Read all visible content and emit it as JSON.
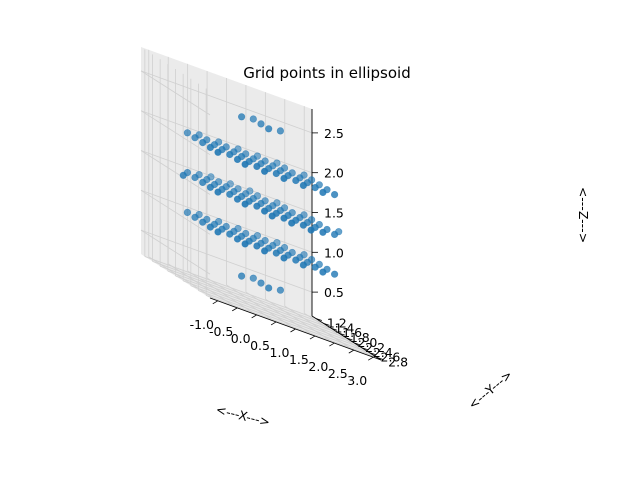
{
  "chart_data": {
    "type": "scatter3d",
    "title": "Grid points in ellipsoid",
    "xlabel": "<---X--->",
    "ylabel": "<---Y--->",
    "zlabel": "<---Z--->",
    "xlim": [
      -1.2,
      3.2
    ],
    "ylim": [
      1.1,
      2.9
    ],
    "zlim": [
      0.2,
      2.8
    ],
    "xticks": [
      "-1.0",
      "-0.5",
      "0.0",
      "0.5",
      "1.0",
      "1.5",
      "2.0",
      "2.5",
      "3.0"
    ],
    "yticks": [
      "1.2",
      "1.4",
      "1.6",
      "1.8",
      "2.0",
      "2.2",
      "2.4",
      "2.6",
      "2.8"
    ],
    "zticks": [
      "0.5",
      "1.0",
      "1.5",
      "2.0",
      "2.5"
    ],
    "grid": true,
    "marker_color": "#1f77b4",
    "grid_description": "Points on a regular grid inside an ellipsoid",
    "x_levels": [
      -1.0,
      -0.5,
      0.0,
      0.5,
      1.0,
      1.5,
      2.0,
      2.5,
      3.0
    ],
    "y_levels": [
      1.2,
      1.4,
      1.6,
      1.8,
      2.0,
      2.2,
      2.4,
      2.6,
      2.8
    ],
    "z_levels": [
      0.5,
      1.0,
      1.5,
      2.0,
      2.5
    ],
    "center": [
      1.0,
      2.0,
      1.5
    ],
    "semi_axes": [
      2.05,
      0.85,
      1.05
    ]
  }
}
